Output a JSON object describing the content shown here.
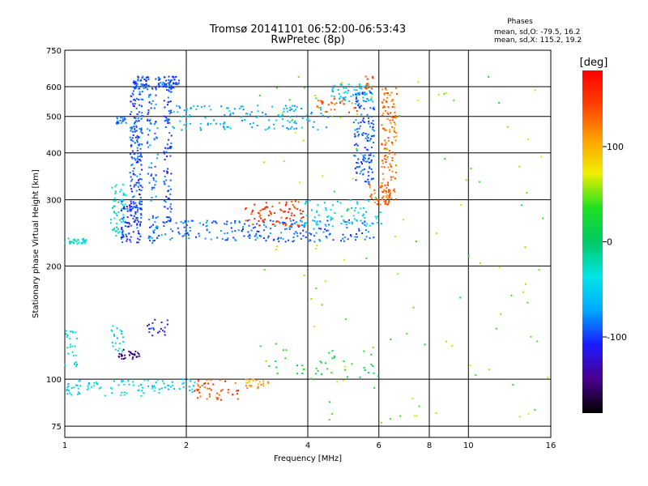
{
  "chart_data": {
    "type": "scatter",
    "title": "Tromsø 20141101 06:52:00-06:53:43",
    "subtitle": "RwPretec (8p)",
    "xlabel": "Frequency [MHz]",
    "ylabel": "Stationary phase Virtual Height [km]",
    "x_scale": "log",
    "y_scale": "log",
    "xlim": [
      1,
      16
    ],
    "ylim": [
      70,
      750
    ],
    "x_ticks": [
      1,
      2,
      4,
      6,
      8,
      10,
      16
    ],
    "y_ticks": [
      75,
      100,
      200,
      300,
      400,
      500,
      600,
      750
    ],
    "grid": true,
    "stats": {
      "title": "Phases",
      "line1": "mean, sd,O: -79.5, 16.2",
      "line2": "mean, sd,X: 115.2, 19.2"
    },
    "colorbar": {
      "label": "[deg]",
      "min": -180,
      "max": 180,
      "ticks": [
        100,
        0,
        -100
      ],
      "colormap": [
        "#000000",
        "#4b0090",
        "#1b1bff",
        "#00a8ff",
        "#00e6e6",
        "#00c864",
        "#20e020",
        "#f0f000",
        "#ffa000",
        "#ff4000",
        "#ff0000"
      ]
    },
    "series": [
      {
        "values": [
          {
            "x_range": [
              1.0,
              1.13
            ],
            "h_range": [
              228,
              238
            ],
            "phase": -30,
            "n": 30
          },
          {
            "x_range": [
              1.3,
              1.42
            ],
            "h_range": [
              240,
              330
            ],
            "phase": -30,
            "n": 60
          },
          {
            "x_range": [
              1.38,
              1.55
            ],
            "h_range": [
              230,
              300
            ],
            "phase": -100,
            "n": 90
          },
          {
            "x_range": [
              1.45,
              1.56
            ],
            "h_range": [
              280,
              600
            ],
            "phase": -95,
            "n": 170
          },
          {
            "x_range": [
              1.48,
              1.62
            ],
            "h_range": [
              590,
              640
            ],
            "phase": -95,
            "n": 50
          },
          {
            "x_range": [
              1.6,
              1.7
            ],
            "h_range": [
              230,
              600
            ],
            "phase": -85,
            "n": 80
          },
          {
            "x_range": [
              1.68,
              1.92
            ],
            "h_range": [
              595,
              640
            ],
            "phase": -95,
            "n": 60
          },
          {
            "x_range": [
              1.76,
              1.84
            ],
            "h_range": [
              260,
              620
            ],
            "phase": -95,
            "n": 90
          },
          {
            "x_range": [
              1.34,
              1.42
            ],
            "h_range": [
              475,
              500
            ],
            "phase": -85,
            "n": 20
          },
          {
            "x_range": [
              1.85,
              4.5
            ],
            "h_range": [
              460,
              535
            ],
            "phase": -65,
            "n": 140
          },
          {
            "x_range": [
              4.5,
              5.8
            ],
            "h_range": [
              540,
              610
            ],
            "phase": -55,
            "n": 70
          },
          {
            "x_range": [
              1.62,
              5.85
            ],
            "h_range": [
              232,
              265
            ],
            "phase": -88,
            "n": 230
          },
          {
            "x_range": [
              5.2,
              5.85
            ],
            "h_range": [
              330,
              580
            ],
            "phase": -95,
            "n": 140
          },
          {
            "x_range": [
              3.85,
              6.1
            ],
            "h_range": [
              255,
              300
            ],
            "phase": -48,
            "n": 80
          },
          {
            "x_range": [
              2.8,
              3.9
            ],
            "h_range": [
              255,
              300
            ],
            "phase": 150,
            "n": 80
          },
          {
            "x_range": [
              6.1,
              6.65
            ],
            "h_range": [
              300,
              600
            ],
            "phase": 130,
            "n": 130
          },
          {
            "x_range": [
              5.7,
              6.4
            ],
            "h_range": [
              290,
              330
            ],
            "phase": 130,
            "n": 40
          },
          {
            "x_range": [
              4.2,
              5.3
            ],
            "h_range": [
              510,
              560
            ],
            "phase": 130,
            "n": 30
          },
          {
            "x_range": [
              5.55,
              5.8
            ],
            "h_range": [
              580,
              640
            ],
            "phase": 140,
            "n": 15
          },
          {
            "x_range": [
              1.0,
              1.08
            ],
            "h_range": [
              108,
              135
            ],
            "phase": -40,
            "n": 25
          },
          {
            "x_range": [
              1.3,
              1.4
            ],
            "h_range": [
              118,
              140
            ],
            "phase": -45,
            "n": 20
          },
          {
            "x_range": [
              1.36,
              1.55
            ],
            "h_range": [
              113,
              120
            ],
            "phase": -150,
            "n": 30
          },
          {
            "x_range": [
              1.6,
              1.8
            ],
            "h_range": [
              130,
              145
            ],
            "phase": -110,
            "n": 20
          },
          {
            "x_range": [
              1.0,
              1.7
            ],
            "h_range": [
              90,
              100
            ],
            "phase": -45,
            "n": 70
          },
          {
            "x_range": [
              1.7,
              2.1
            ],
            "h_range": [
              92,
              100
            ],
            "phase": -50,
            "n": 30
          },
          {
            "x_range": [
              2.1,
              2.7
            ],
            "h_range": [
              88,
              100
            ],
            "phase": 140,
            "n": 45
          },
          {
            "x_range": [
              2.8,
              3.2
            ],
            "h_range": [
              94,
              100
            ],
            "phase": 110,
            "n": 25
          },
          {
            "x_range": [
              3.2,
              6.0
            ],
            "h_range": [
              100,
              120
            ],
            "phase": 20,
            "n": 40
          },
          {
            "x_range": [
              3.0,
              16.0
            ],
            "h_range": [
              75,
              650
            ],
            "phase": 50,
            "n": 120
          }
        ]
      }
    ]
  }
}
